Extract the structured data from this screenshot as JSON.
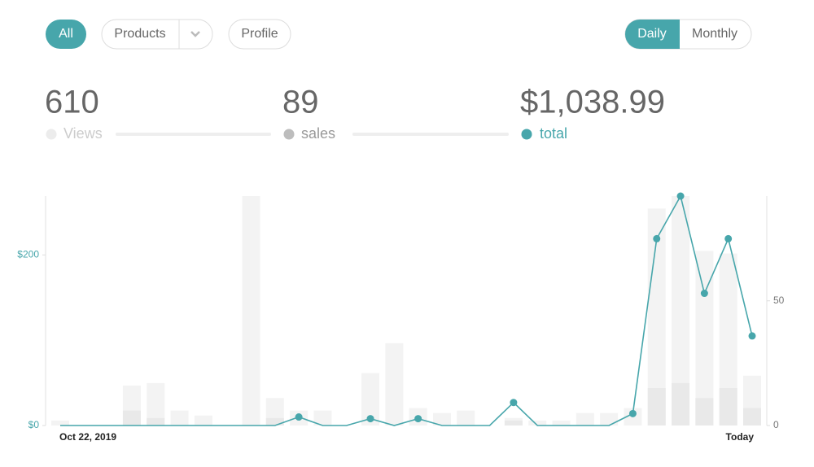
{
  "filters": [
    "All",
    "Products",
    "Profile"
  ],
  "periods": [
    "Daily",
    "Monthly"
  ],
  "stats": [
    "610",
    "89",
    "$1,038.99"
  ],
  "chart_data": {
    "type": "combo",
    "categories": [
      "Oct 22, 2019",
      null,
      null,
      null,
      null,
      null,
      null,
      null,
      null,
      null,
      null,
      null,
      null,
      null,
      null,
      null,
      null,
      null,
      null,
      null,
      null,
      null,
      null,
      null,
      null,
      null,
      null,
      null,
      null,
      "Today"
    ],
    "series": [
      {
        "name": "Views",
        "type": "bar",
        "axis": "y2",
        "color": "#f3f3f3",
        "values": [
          2,
          0,
          0,
          16,
          17,
          6,
          4,
          0,
          92,
          11,
          6,
          6,
          0,
          21,
          33,
          7,
          5,
          6,
          0,
          3,
          2,
          2,
          5,
          5,
          7,
          87,
          92,
          70,
          69,
          20
        ]
      },
      {
        "name": "sales",
        "type": "bar",
        "axis": "y2",
        "color": "#e9e9e9",
        "values": [
          0,
          0,
          0,
          6,
          3,
          0,
          0,
          0,
          0,
          3,
          0,
          0,
          0,
          0,
          0,
          0,
          0,
          0,
          0,
          2,
          0,
          0,
          0,
          0,
          0,
          15,
          17,
          11,
          15,
          7
        ]
      },
      {
        "name": "total",
        "type": "line",
        "color": "#47a6ab",
        "values": [
          0,
          0,
          0,
          0,
          0,
          0,
          0,
          0,
          0,
          0,
          10,
          0,
          0,
          8,
          0,
          8,
          0,
          0,
          0,
          27,
          0,
          0,
          0,
          0,
          14,
          219,
          269,
          155,
          219,
          105
        ]
      }
    ],
    "ylim": [
      0,
      269
    ],
    "yticks": [
      {
        "value": 0,
        "label": "$0"
      },
      {
        "value": 200,
        "label": "$200"
      }
    ],
    "y2lim": [
      0,
      92
    ],
    "y2ticks": [
      0,
      50
    ]
  }
}
